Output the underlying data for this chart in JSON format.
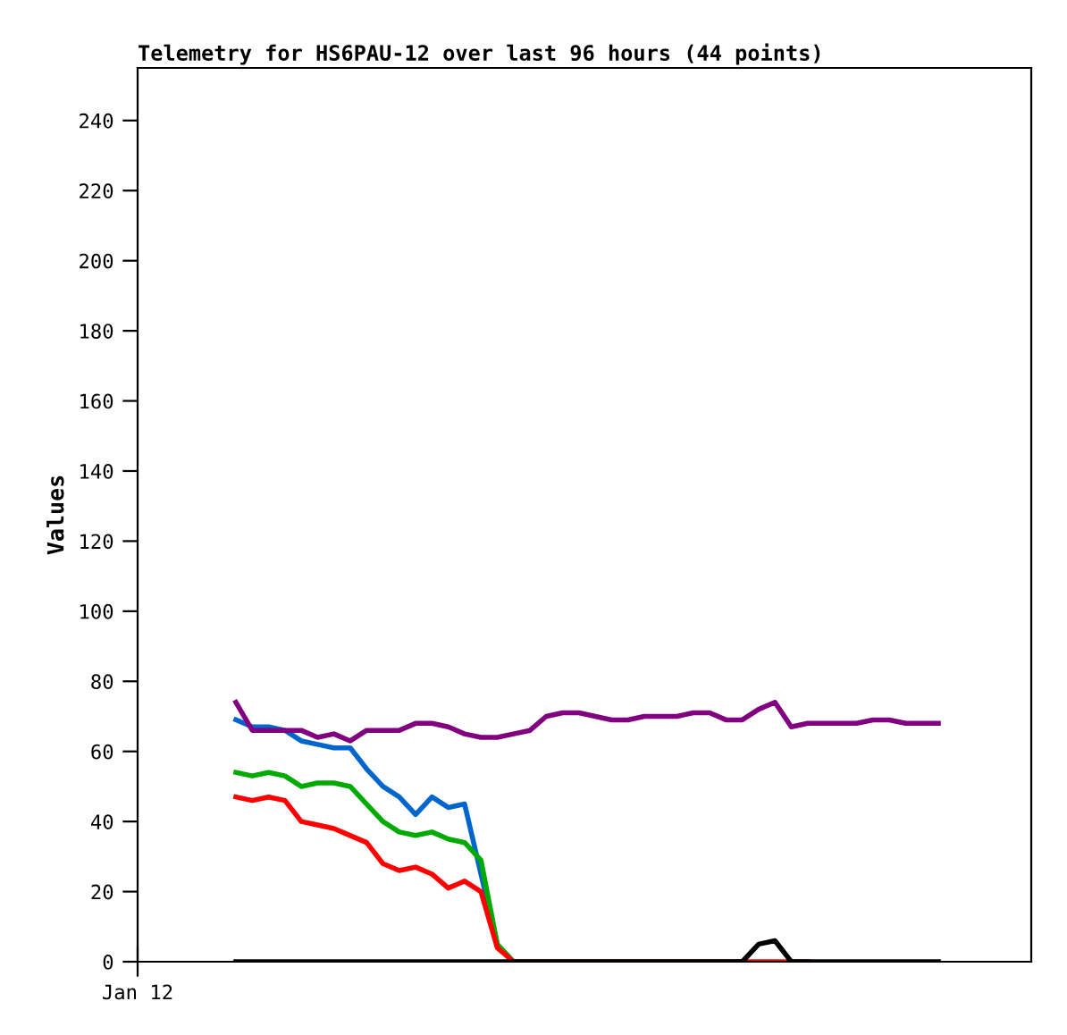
{
  "chart_data": {
    "type": "line",
    "title": "Telemetry for HS6PAU-12 over last 96 hours (44 points)",
    "ylabel": "Values",
    "annotations": [
      "Jan 12"
    ],
    "categories": [
      null,
      null,
      null,
      null,
      null,
      null,
      null,
      null,
      null,
      null,
      null,
      null,
      null,
      null,
      null,
      null,
      null,
      null,
      null,
      null,
      null,
      null,
      null,
      null,
      null,
      null,
      null,
      null,
      null,
      null,
      null,
      null,
      null,
      null,
      null,
      null,
      null,
      null,
      null,
      null,
      null,
      null,
      null,
      null
    ],
    "ylim": [
      0,
      255
    ],
    "yticks": [
      0,
      20,
      40,
      60,
      80,
      100,
      120,
      140,
      160,
      180,
      200,
      220,
      240
    ],
    "tick_labels": "y",
    "series": [
      {
        "color": "#0066cc",
        "values": [
          69,
          67,
          67,
          66,
          63,
          62,
          61,
          61,
          55,
          50,
          47,
          42,
          47,
          44,
          45,
          25,
          5,
          null,
          null,
          null,
          null,
          null,
          null,
          null,
          null,
          null,
          null,
          null,
          null,
          null,
          null,
          null,
          null,
          null,
          null,
          null,
          null,
          null,
          null,
          null,
          null,
          null,
          null,
          null
        ]
      },
      {
        "color": "#00aa00",
        "values": [
          54,
          53,
          54,
          53,
          50,
          51,
          51,
          50,
          45,
          40,
          37,
          36,
          37,
          35,
          34,
          29,
          5,
          0,
          null,
          null,
          null,
          null,
          null,
          null,
          null,
          null,
          null,
          null,
          null,
          null,
          null,
          null,
          null,
          null,
          null,
          null,
          null,
          null,
          null,
          null,
          null,
          null,
          null,
          null
        ]
      },
      {
        "color": "#ff0000",
        "values": [
          47,
          46,
          47,
          46,
          40,
          39,
          38,
          36,
          34,
          28,
          26,
          27,
          25,
          21,
          23,
          20,
          4,
          0,
          0,
          0,
          0,
          0,
          0,
          0,
          0,
          0,
          0,
          0,
          0,
          0,
          0,
          0,
          0,
          0,
          0,
          0,
          null,
          null,
          null,
          null,
          null,
          null,
          null,
          null
        ]
      },
      {
        "color": "#800080",
        "values": [
          74,
          66,
          66,
          66,
          66,
          64,
          65,
          63,
          66,
          66,
          66,
          68,
          68,
          67,
          65,
          64,
          64,
          65,
          66,
          70,
          71,
          71,
          70,
          69,
          69,
          70,
          70,
          70,
          71,
          71,
          69,
          69,
          72,
          74,
          67,
          68,
          68,
          68,
          68,
          69,
          69,
          68,
          68,
          68
        ]
      },
      {
        "color": "#000000",
        "values": [
          0,
          0,
          0,
          0,
          0,
          0,
          0,
          0,
          0,
          0,
          0,
          0,
          0,
          0,
          0,
          0,
          0,
          0,
          0,
          0,
          0,
          0,
          0,
          0,
          0,
          0,
          0,
          0,
          0,
          0,
          0,
          0,
          5,
          6,
          0,
          0,
          0,
          0,
          0,
          0,
          0,
          0,
          0,
          0
        ]
      }
    ]
  }
}
